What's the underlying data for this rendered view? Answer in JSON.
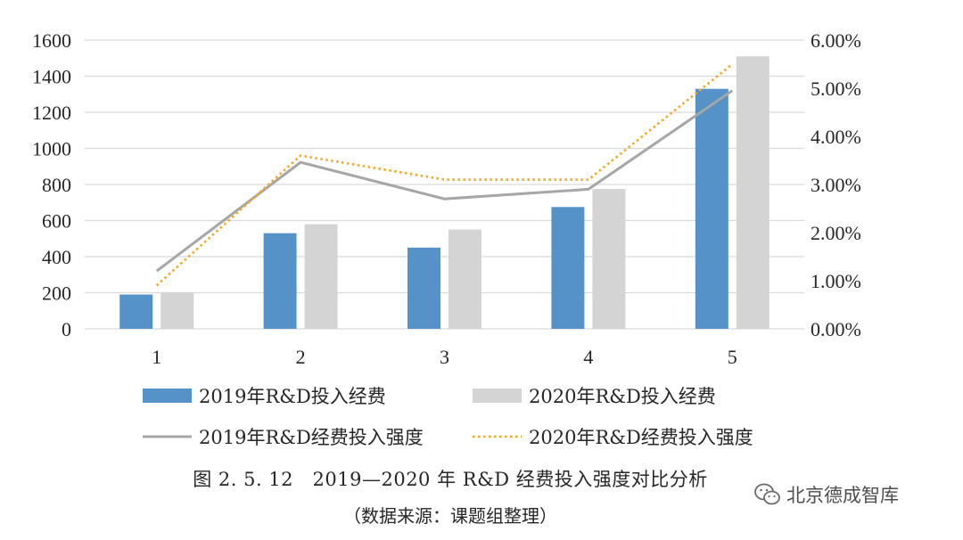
{
  "chart_data": {
    "type": "bar",
    "categories": [
      "1",
      "2",
      "3",
      "4",
      "5"
    ],
    "series": [
      {
        "name": "2019年R&D投入经费",
        "kind": "bar",
        "axis": "left",
        "color": "#5592c8",
        "values": [
          190,
          530,
          450,
          675,
          1330
        ]
      },
      {
        "name": "2020年R&D投入经费",
        "kind": "bar",
        "axis": "left",
        "color": "#d4d4d4",
        "values": [
          200,
          580,
          550,
          775,
          1510
        ]
      },
      {
        "name": "2019年R&D经费投入强度",
        "kind": "line",
        "axis": "right",
        "color": "#a6a6a6",
        "values": [
          1.2,
          3.46,
          2.7,
          2.9,
          4.95
        ]
      },
      {
        "name": "2020年R&D经费投入强度",
        "kind": "dotted-line",
        "axis": "right",
        "color": "#f5a623",
        "values": [
          0.9,
          3.6,
          3.1,
          3.1,
          5.5
        ]
      }
    ],
    "y_left": {
      "min": 0,
      "max": 1600,
      "ticks": [
        "0",
        "200",
        "400",
        "600",
        "800",
        "1000",
        "1200",
        "1400",
        "1600"
      ]
    },
    "y_right": {
      "min": 0,
      "max": 6,
      "ticks": [
        "0.00%",
        "1.00%",
        "2.00%",
        "3.00%",
        "4.00%",
        "5.00%",
        "6.00%"
      ]
    },
    "grid": true,
    "legend_position": "bottom"
  },
  "caption": {
    "title": "图 2. 5. 12　2019—2020 年 R&D 经费投入强度对比分析",
    "source": "（数据来源：课题组整理）"
  },
  "watermark": {
    "text": "北京德成智库",
    "icon": "wechat-icon"
  }
}
